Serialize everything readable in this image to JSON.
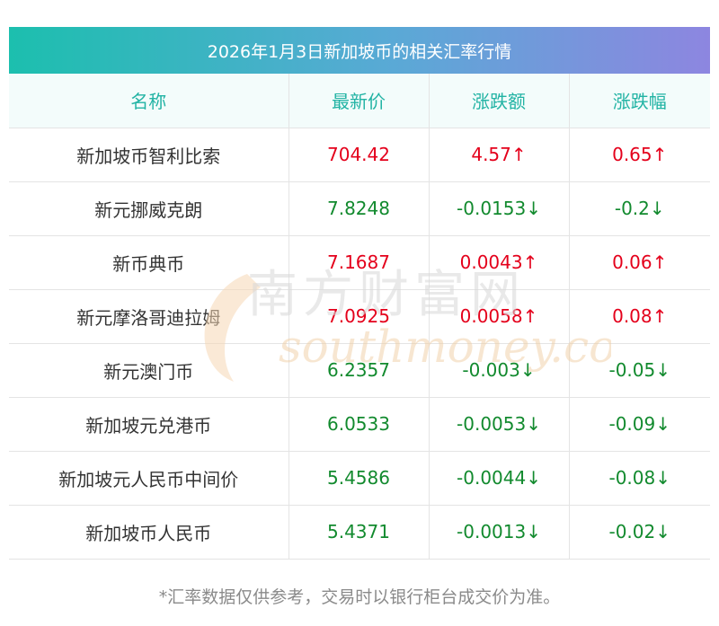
{
  "title": "2026年1月3日新加坡币的相关汇率行情",
  "headers": [
    "名称",
    "最新价",
    "涨跌额",
    "涨跌幅"
  ],
  "rows": [
    {
      "name": "新加坡币智利比索",
      "price": "704.42",
      "change": "4.57↑",
      "pct": "0.65↑",
      "dir": "up"
    },
    {
      "name": "新元挪威克朗",
      "price": "7.8248",
      "change": "-0.0153↓",
      "pct": "-0.2↓",
      "dir": "down"
    },
    {
      "name": "新币典币",
      "price": "7.1687",
      "change": "0.0043↑",
      "pct": "0.06↑",
      "dir": "up"
    },
    {
      "name": "新元摩洛哥迪拉姆",
      "price": "7.0925",
      "change": "0.0058↑",
      "pct": "0.08↑",
      "dir": "up"
    },
    {
      "name": "新元澳门币",
      "price": "6.2357",
      "change": "-0.003↓",
      "pct": "-0.05↓",
      "dir": "down"
    },
    {
      "name": "新加坡元兑港币",
      "price": "6.0533",
      "change": "-0.0053↓",
      "pct": "-0.09↓",
      "dir": "down"
    },
    {
      "name": "新加坡元人民币中间价",
      "price": "5.4586",
      "change": "-0.0044↓",
      "pct": "-0.08↓",
      "dir": "down"
    },
    {
      "name": "新加坡币人民币",
      "price": "5.4371",
      "change": "-0.0013↓",
      "pct": "-0.02↓",
      "dir": "down"
    }
  ],
  "footnote": "*汇率数据仅供参考，交易时以银行柜台成交价为准。",
  "watermark": {
    "cn": "南方财富网",
    "en": "southmoney.com"
  },
  "colors": {
    "up": "#e4001b",
    "down": "#128a2e",
    "header_text": "#22b3a4",
    "gradient_start": "#1cbfae",
    "gradient_end": "#8d86e0"
  }
}
